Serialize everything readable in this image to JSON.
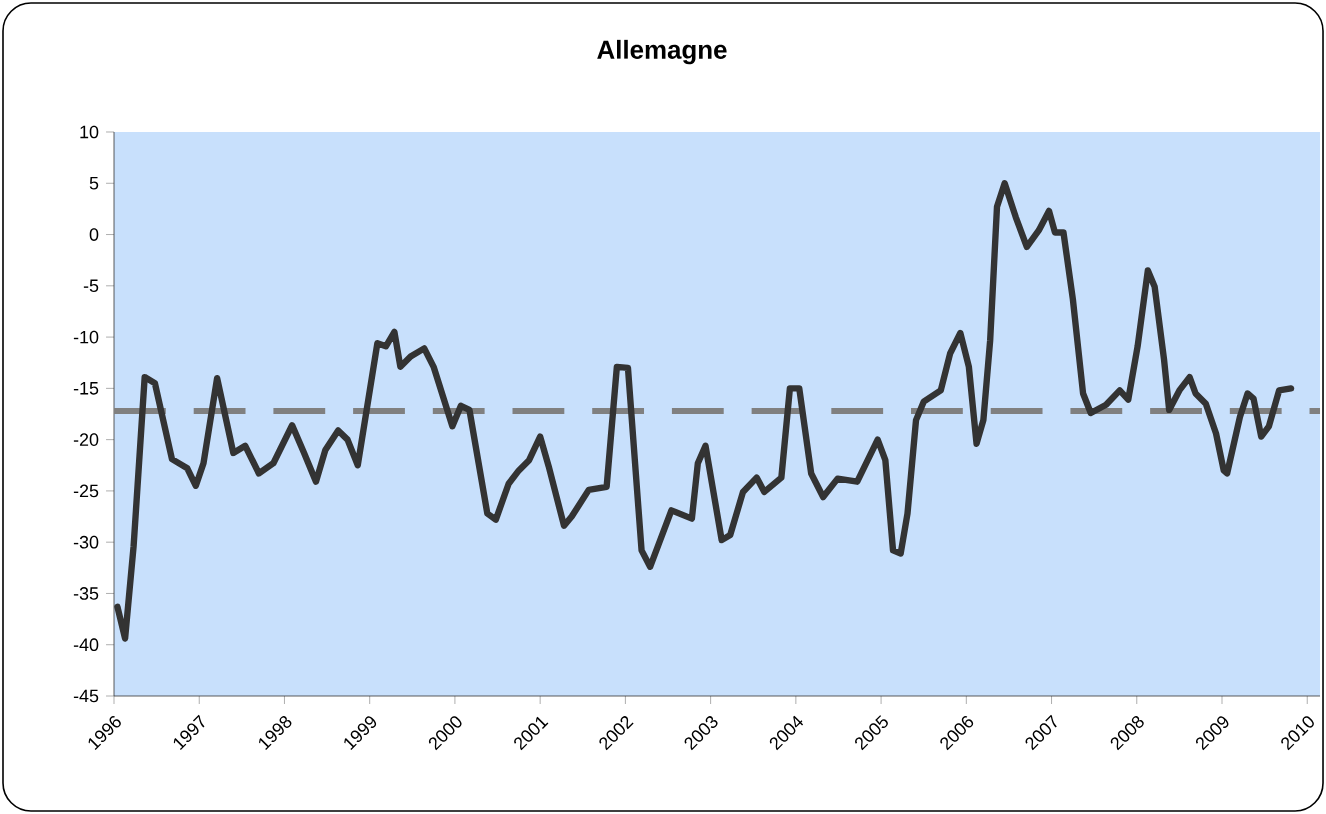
{
  "chart_data": {
    "type": "line",
    "title": "Allemagne",
    "x": [
      1996.04,
      1996.13,
      1996.23,
      1996.36,
      1996.48,
      1996.68,
      1996.86,
      1996.96,
      1997.05,
      1997.21,
      1997.4,
      1997.54,
      1997.7,
      1997.87,
      1998.09,
      1998.23,
      1998.37,
      1998.48,
      1998.63,
      1998.74,
      1998.86,
      1999.09,
      1999.19,
      1999.29,
      1999.36,
      1999.48,
      1999.64,
      1999.75,
      1999.97,
      2000.07,
      2000.17,
      2000.38,
      2000.48,
      2000.63,
      2000.75,
      2000.87,
      2001.0,
      2001.1,
      2001.28,
      2001.37,
      2001.57,
      2001.78,
      2001.9,
      2002.03,
      2002.19,
      2002.29,
      2002.54,
      2002.78,
      2002.85,
      2002.94,
      2003.13,
      2003.23,
      2003.38,
      2003.54,
      2003.63,
      2003.83,
      2003.93,
      2004.04,
      2004.18,
      2004.32,
      2004.49,
      2004.72,
      2004.96,
      2005.05,
      2005.14,
      2005.23,
      2005.31,
      2005.41,
      2005.5,
      2005.7,
      2005.81,
      2005.93,
      2006.03,
      2006.12,
      2006.2,
      2006.28,
      2006.36,
      2006.45,
      2006.58,
      2006.71,
      2006.85,
      2006.97,
      2007.04,
      2007.14,
      2007.25,
      2007.37,
      2007.46,
      2007.64,
      2007.8,
      2007.9,
      2008.01,
      2008.13,
      2008.21,
      2008.32,
      2008.38,
      2008.5,
      2008.62,
      2008.69,
      2008.81,
      2008.93,
      2009.02,
      2009.06,
      2009.21,
      2009.3,
      2009.37,
      2009.46,
      2009.55,
      2009.67,
      2009.81
    ],
    "values": [
      -36.3,
      -39.4,
      -30.4,
      -13.9,
      -14.5,
      -21.9,
      -22.8,
      -24.5,
      -22.3,
      -14.0,
      -21.3,
      -20.6,
      -23.3,
      -22.3,
      -18.6,
      -21.3,
      -24.1,
      -21.0,
      -19.1,
      -20.0,
      -22.5,
      -10.6,
      -10.9,
      -9.5,
      -12.9,
      -11.9,
      -11.1,
      -12.9,
      -18.7,
      -16.7,
      -17.1,
      -27.2,
      -27.8,
      -24.3,
      -23.0,
      -22.0,
      -19.7,
      -22.6,
      -28.4,
      -27.5,
      -24.9,
      -24.6,
      -12.9,
      -13.0,
      -30.8,
      -32.4,
      -26.9,
      -27.7,
      -22.3,
      -20.6,
      -29.8,
      -29.3,
      -25.1,
      -23.7,
      -25.1,
      -23.7,
      -15.0,
      -15.0,
      -23.3,
      -25.6,
      -23.8,
      -24.1,
      -20.0,
      -22.0,
      -30.8,
      -31.1,
      -27.2,
      -18.1,
      -16.3,
      -15.2,
      -11.6,
      -9.6,
      -12.9,
      -20.4,
      -18.1,
      -10.3,
      2.7,
      5.0,
      1.7,
      -1.2,
      0.4,
      2.3,
      0.2,
      0.2,
      -6.3,
      -15.5,
      -17.4,
      -16.6,
      -15.2,
      -16.1,
      -10.9,
      -3.5,
      -5.1,
      -12.2,
      -17.1,
      -15.2,
      -13.9,
      -15.5,
      -16.5,
      -19.4,
      -23.0,
      -23.3,
      -17.8,
      -15.5,
      -16.0,
      -19.7,
      -18.7,
      -15.2,
      -15.0
    ],
    "color": "#333333",
    "xlim": [
      1996,
      2010.15
    ],
    "ylim": [
      -45,
      10
    ],
    "xticks": [
      1996,
      1997,
      1998,
      1999,
      2000,
      2001,
      2002,
      2003,
      2004,
      2005,
      2006,
      2007,
      2008,
      2009,
      2010
    ],
    "yticks": [
      -45,
      -40,
      -35,
      -30,
      -25,
      -20,
      -15,
      -10,
      -5,
      0,
      5,
      10
    ],
    "ref_lines": [
      {
        "axis": "y",
        "value": -17.2,
        "color": "#808080",
        "line_style": "dashed"
      }
    ]
  }
}
